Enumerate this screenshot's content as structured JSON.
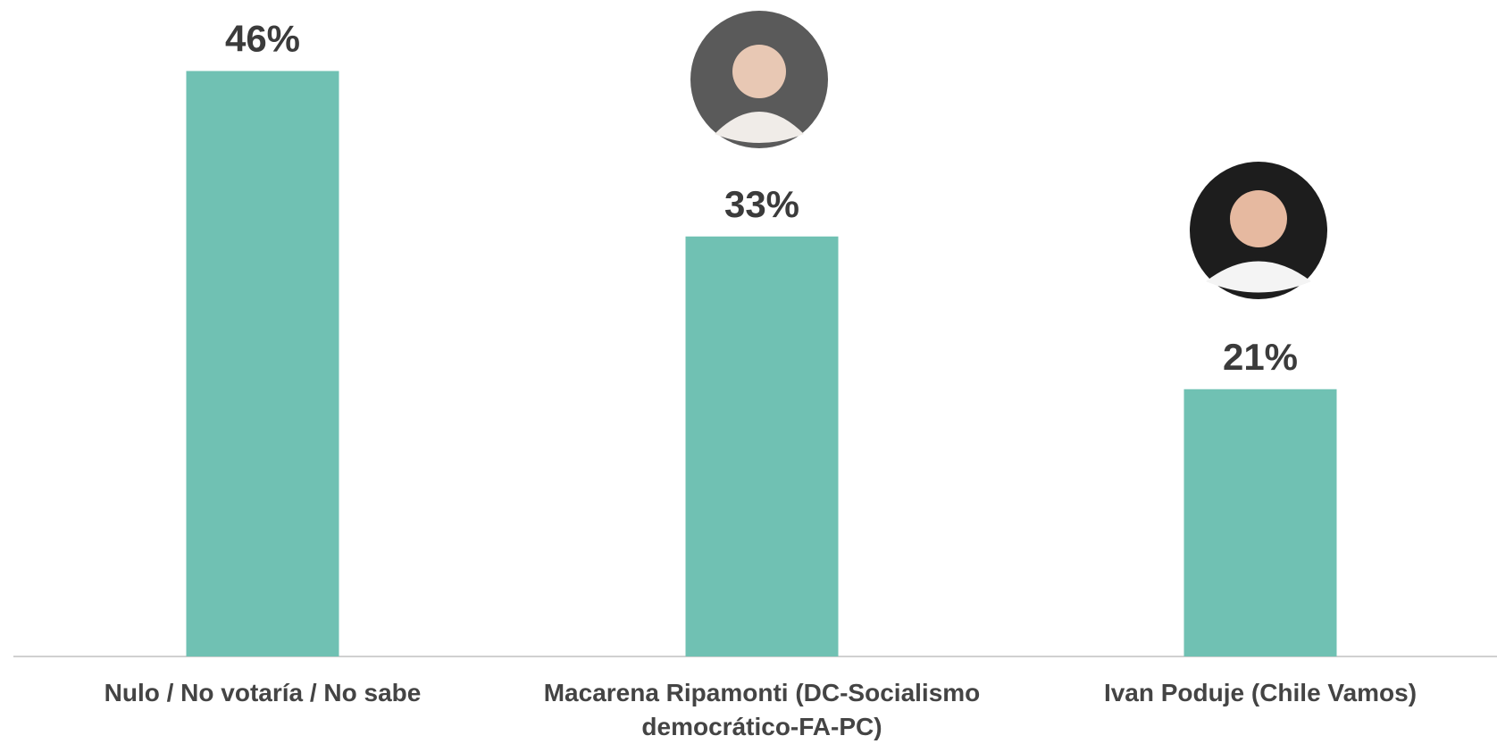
{
  "chart_data": {
    "type": "bar",
    "categories": [
      "Nulo / No votaría / No sabe",
      "Macarena Ripamonti (DC-Socialismo democrático-FA-PC)",
      "Ivan Poduje (Chile Vamos)"
    ],
    "values": [
      46,
      33,
      21
    ],
    "value_labels": [
      "46%",
      "33%",
      "21%"
    ],
    "color": "#70c1b3"
  }
}
